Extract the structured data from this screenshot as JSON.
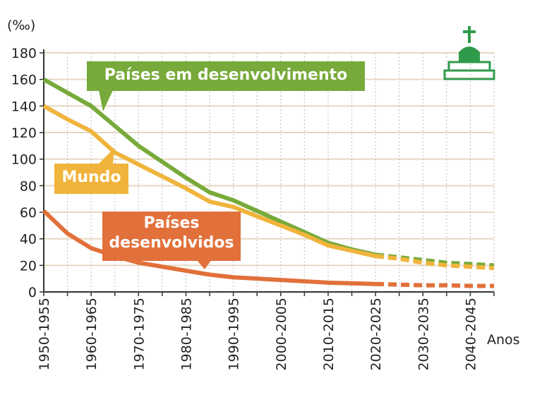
{
  "chart_data": {
    "type": "line",
    "y_unit": "(‰)",
    "x_label": "Anos",
    "categories": [
      "1950-1955",
      null,
      "1960-1965",
      null,
      "1970-1975",
      null,
      "1980-1985",
      null,
      "1990-1995",
      null,
      "2000-2005",
      null,
      "2010-2015",
      null,
      "2020-2025",
      null,
      "2030-2035",
      null,
      "2040-2045",
      null
    ],
    "dashed_after": "2020-2025",
    "series": [
      {
        "name": "Países em desenvolvimento",
        "color": "#77aa3a",
        "values": [
          160,
          150,
          140,
          125,
          110,
          98,
          86,
          75,
          69,
          61,
          53,
          45,
          37,
          32,
          28,
          26,
          24,
          22,
          21,
          20
        ]
      },
      {
        "name": "Mundo",
        "color": "#f0b43c",
        "values": [
          140,
          130,
          121,
          105,
          96,
          87,
          78,
          68,
          64,
          57,
          50,
          43,
          35,
          31,
          27,
          25,
          22,
          20,
          19,
          18
        ]
      },
      {
        "name": "Países desenvolvidos",
        "color": "#e2703a",
        "values": [
          61,
          44,
          33,
          27,
          22,
          19,
          16,
          13,
          11,
          10,
          9,
          8,
          7,
          6.5,
          6,
          5.5,
          5,
          5,
          4.5,
          4.5
        ]
      }
    ],
    "ylim": [
      0,
      180
    ],
    "yticks": [
      0,
      20,
      40,
      60,
      80,
      100,
      120,
      140,
      160,
      180
    ],
    "grid": true
  }
}
